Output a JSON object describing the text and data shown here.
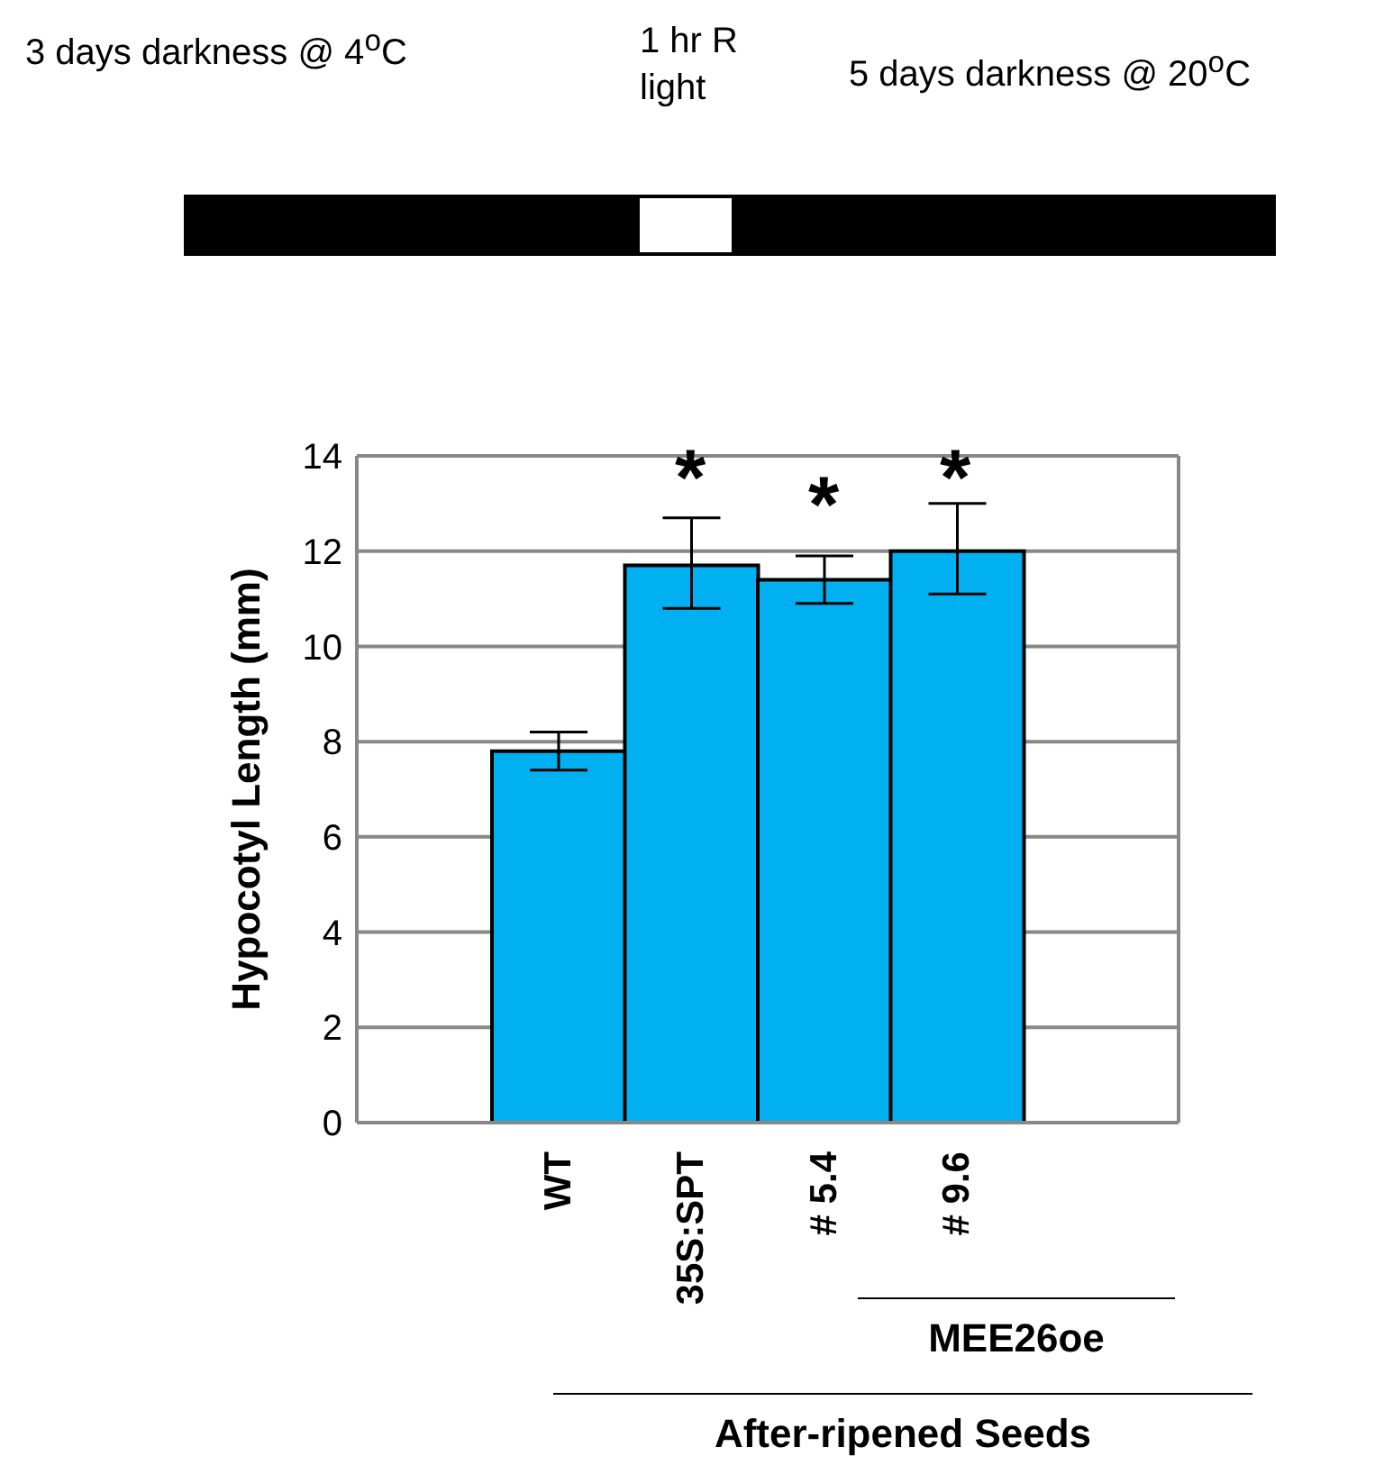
{
  "chart_data": {
    "type": "bar",
    "ylabel": "Hypocotyl Length (mm)",
    "categories": [
      "WT",
      "35S:SPT",
      "# 5.4",
      "# 9.6"
    ],
    "values": [
      7.8,
      11.7,
      11.4,
      12.0
    ],
    "errors": [
      [
        7.4,
        8.2
      ],
      [
        10.8,
        12.7
      ],
      [
        10.9,
        11.9
      ],
      [
        11.1,
        13.0
      ]
    ],
    "color": "#00b0f0",
    "ylim": [
      0,
      14
    ],
    "yticks": [
      0,
      2,
      4,
      6,
      8,
      10,
      12,
      14
    ],
    "grid": "y",
    "legend": false,
    "annotations": [
      "3 days darkness @ 4$^{o}$C",
      "1 hr R light",
      "5 days darkness @ 20$^{o}$C",
      "*",
      "*",
      "*",
      "MEE26oe",
      "After-ripened Seeds"
    ]
  }
}
